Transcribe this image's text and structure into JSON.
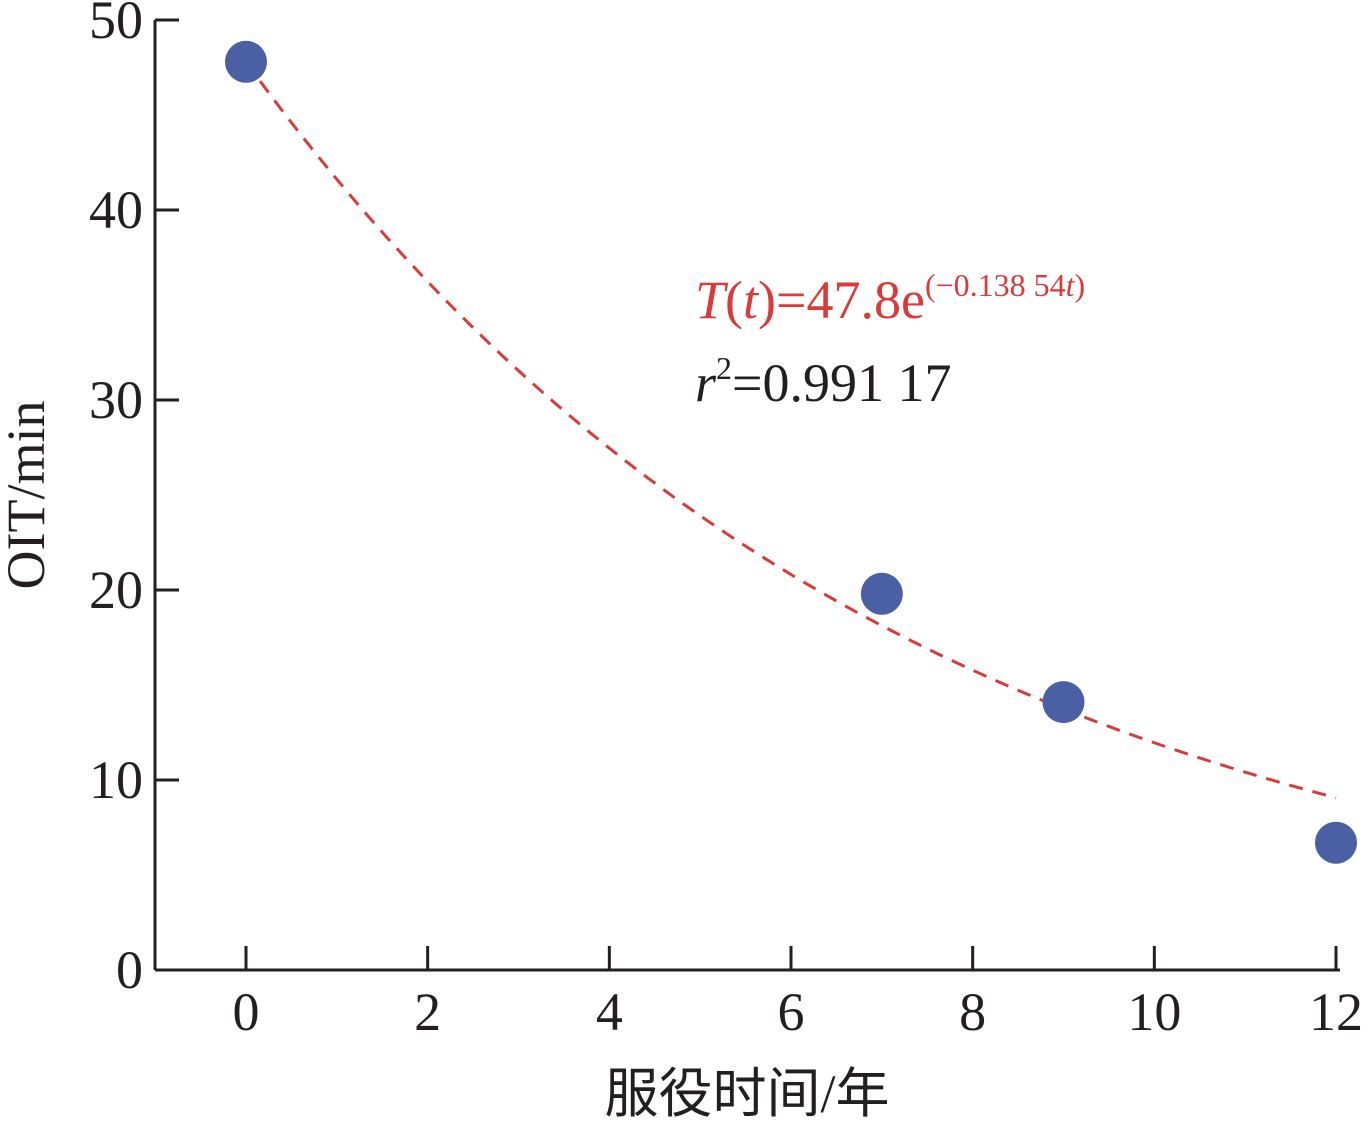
{
  "chart_data": {
    "type": "scatter",
    "xlabel": "服役时间/年",
    "ylabel": "OIT/min",
    "xlim": [
      -1,
      12
    ],
    "ylim": [
      0,
      50
    ],
    "x_ticks": [
      "0",
      "2",
      "4",
      "6",
      "8",
      "10",
      "12"
    ],
    "y_ticks": [
      "0",
      "10",
      "20",
      "30",
      "40",
      "50"
    ],
    "grid": false,
    "series": [
      {
        "points": [
          {
            "x": 0,
            "y": 47.8
          },
          {
            "x": 7,
            "y": 19.8
          },
          {
            "x": 9,
            "y": 14.1
          },
          {
            "x": 12,
            "y": 6.7
          }
        ],
        "color": "#4a5fa4"
      }
    ],
    "fit": {
      "style": "dashed",
      "color": "#d93a3a",
      "a": 47.8,
      "k": -0.13854,
      "x_range": [
        0,
        12
      ]
    },
    "annotations": {
      "equation": {
        "T": "T",
        "open": "(",
        "t": "t",
        "close": ")",
        "rhs": "=47.8e",
        "exp_main": "(−0.138 54",
        "exp_t": "t",
        "exp_close": ")",
        "color": "#d93a3a"
      },
      "r2": {
        "r": "r",
        "sup": "2",
        "value": "=0.991 17",
        "color": "#231f20"
      }
    }
  }
}
